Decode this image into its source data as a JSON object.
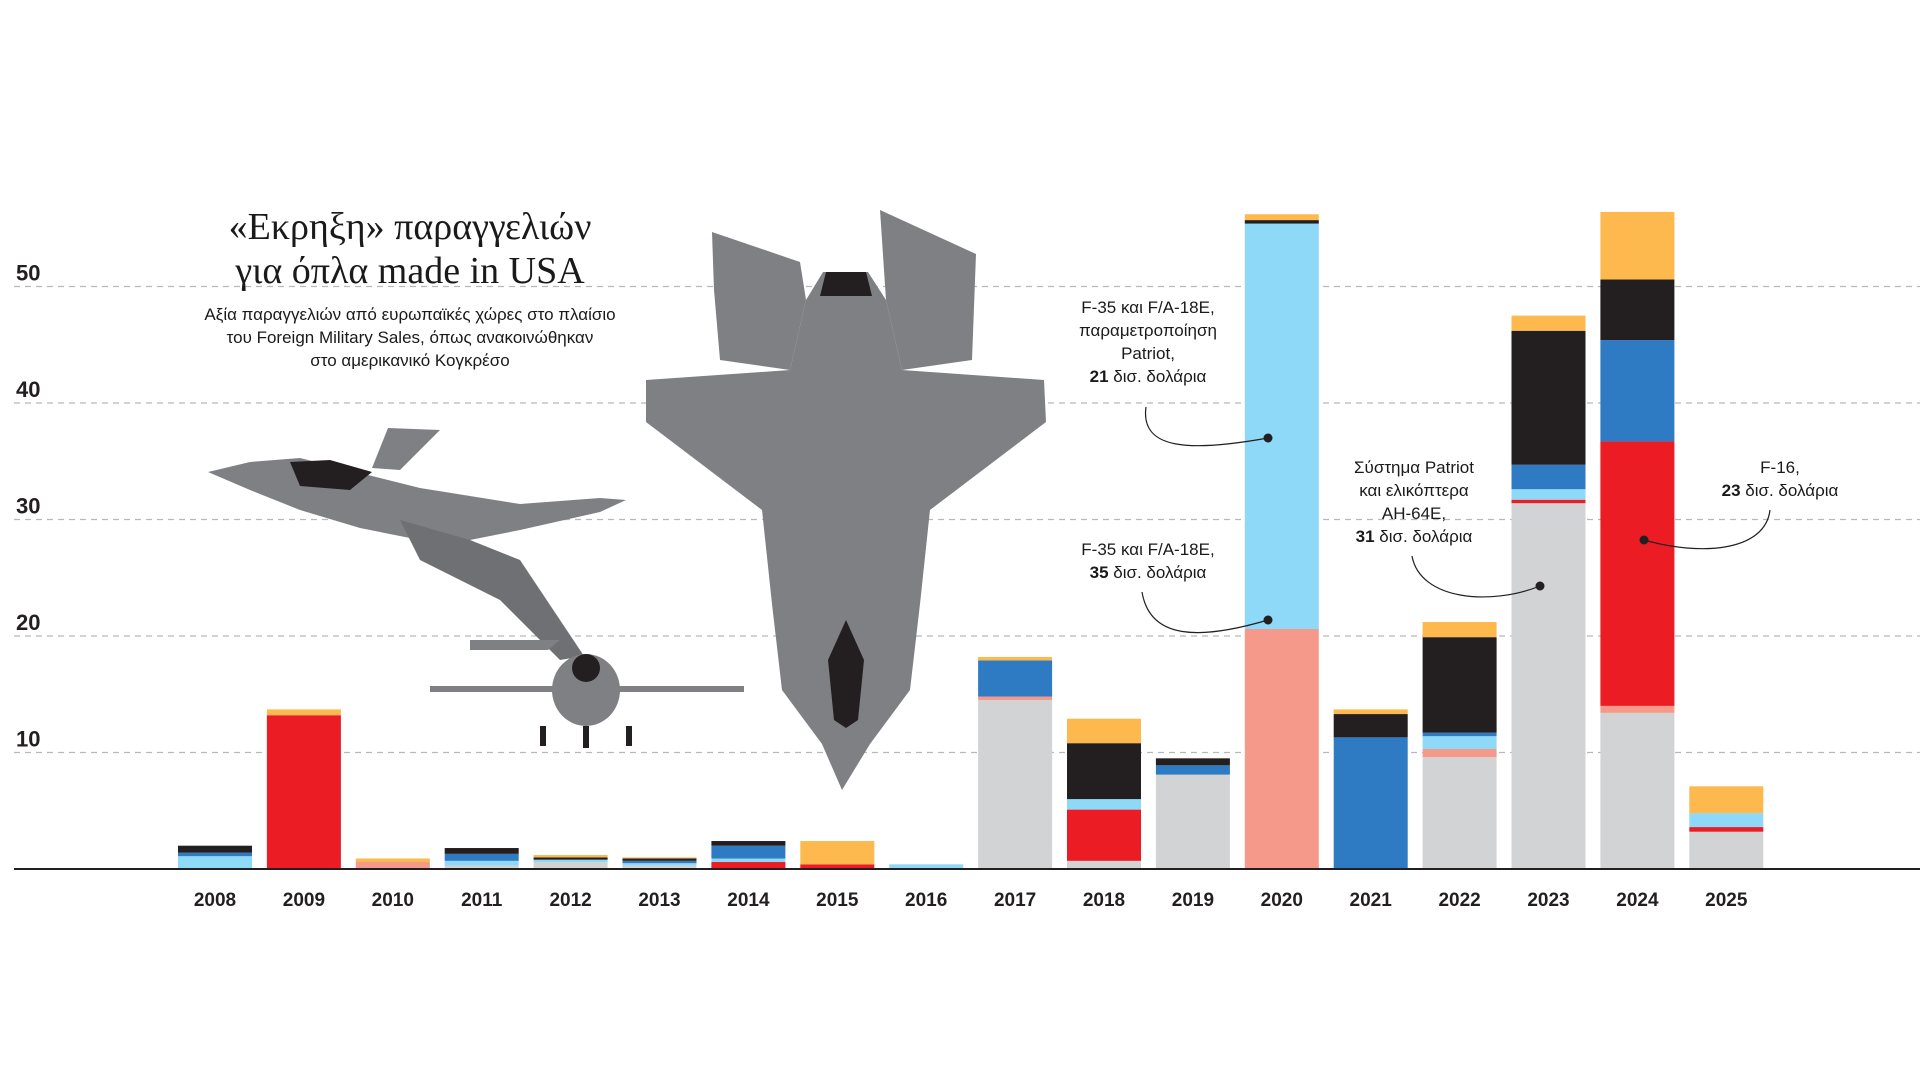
{
  "title": {
    "line1": "«Εκρηξη» παραγγελιών",
    "line2": "για όπλα made in USA"
  },
  "subtitle": {
    "line1": "Αξία παραγγελιών από ευρωπαϊκές χώρες στο πλαίσιο",
    "line2": "του Foreign Military Sales, όπως ανακοινώθηκαν",
    "line3": "στο αμερικανικό Κογκρέσο"
  },
  "colors": {
    "gray": "#d2d3d5",
    "salmon": "#f5998a",
    "red": "#ec1c24",
    "lightblue": "#8ed8f8",
    "blue": "#2e7bc4",
    "black": "#231f20",
    "yellow": "#fdb94d",
    "plane": "#7f8083",
    "plane_dark": "#231f20",
    "grid": "#b8b8b8"
  },
  "chart_data": {
    "type": "bar",
    "stacked": true,
    "categories": [
      "2008",
      "2009",
      "2010",
      "2011",
      "2012",
      "2013",
      "2014",
      "2015",
      "2016",
      "2017",
      "2018",
      "2019",
      "2020",
      "2021",
      "2022",
      "2023",
      "2024",
      "2025"
    ],
    "ylim": [
      0,
      57
    ],
    "yticks": [
      10,
      20,
      30,
      40,
      50
    ],
    "grid": true,
    "series": [
      {
        "color_key": "gray",
        "values": [
          0,
          0,
          0,
          0.3,
          0.6,
          0.3,
          0,
          0,
          0,
          14.5,
          0.7,
          8.1,
          0,
          0,
          9.6,
          31.4,
          13.4,
          3.2
        ]
      },
      {
        "color_key": "salmon",
        "values": [
          0,
          0,
          0.6,
          0,
          0,
          0,
          0,
          0,
          0,
          0.3,
          0,
          0,
          0,
          0,
          0.7,
          0,
          0.6,
          0
        ]
      },
      {
        "color_key": "red",
        "values": [
          0,
          13.2,
          0,
          0,
          0,
          0,
          0.6,
          0.4,
          0,
          0,
          4.4,
          0,
          0,
          0,
          0,
          0.3,
          22.7,
          0.4
        ]
      },
      {
        "color_key": "salmon",
        "values": [
          0,
          0,
          0,
          0,
          0,
          0,
          0,
          0,
          0,
          0,
          0,
          0,
          20.6,
          0,
          0,
          0,
          0,
          0
        ]
      },
      {
        "color_key": "lightblue",
        "values": [
          1.1,
          0,
          0,
          0.4,
          0.2,
          0.2,
          0.3,
          0,
          0.4,
          0,
          0.9,
          0,
          34.8,
          0,
          1.1,
          0.9,
          0,
          1.2
        ]
      },
      {
        "color_key": "blue",
        "values": [
          0.3,
          0,
          0,
          0.6,
          0,
          0.2,
          1.1,
          0,
          0,
          3.1,
          0,
          0.8,
          0,
          11.3,
          0.3,
          2.1,
          8.7,
          0
        ]
      },
      {
        "color_key": "black",
        "values": [
          0.6,
          0,
          0,
          0.5,
          0.2,
          0.2,
          0.4,
          0,
          0,
          0,
          4.8,
          0.6,
          0.3,
          2.0,
          8.2,
          11.5,
          5.2,
          0
        ]
      },
      {
        "color_key": "yellow",
        "values": [
          0,
          0.5,
          0.3,
          0,
          0.2,
          0.1,
          0,
          2.0,
          0,
          0.3,
          2.1,
          0,
          0.5,
          0.4,
          1.3,
          1.3,
          5.8,
          2.3
        ]
      }
    ],
    "annotations": [
      {
        "lines": [
          "F-35 και F/A-18E,",
          "παραμετροποίηση",
          "Patriot,"
        ],
        "bold": "21",
        "rest": " δισ. δολάρια"
      },
      {
        "lines": [
          "F-35 και F/A-18E,"
        ],
        "bold": "35",
        "rest": " δισ. δολάρια"
      },
      {
        "lines": [
          "Σύστημα Patriot",
          "και ελικόπτερα",
          "AH-64E,"
        ],
        "bold": "31",
        "rest": " δισ. δολάρια"
      },
      {
        "lines": [
          "F-16,"
        ],
        "bold": "23",
        "rest": " δισ. δολάρια"
      }
    ]
  }
}
